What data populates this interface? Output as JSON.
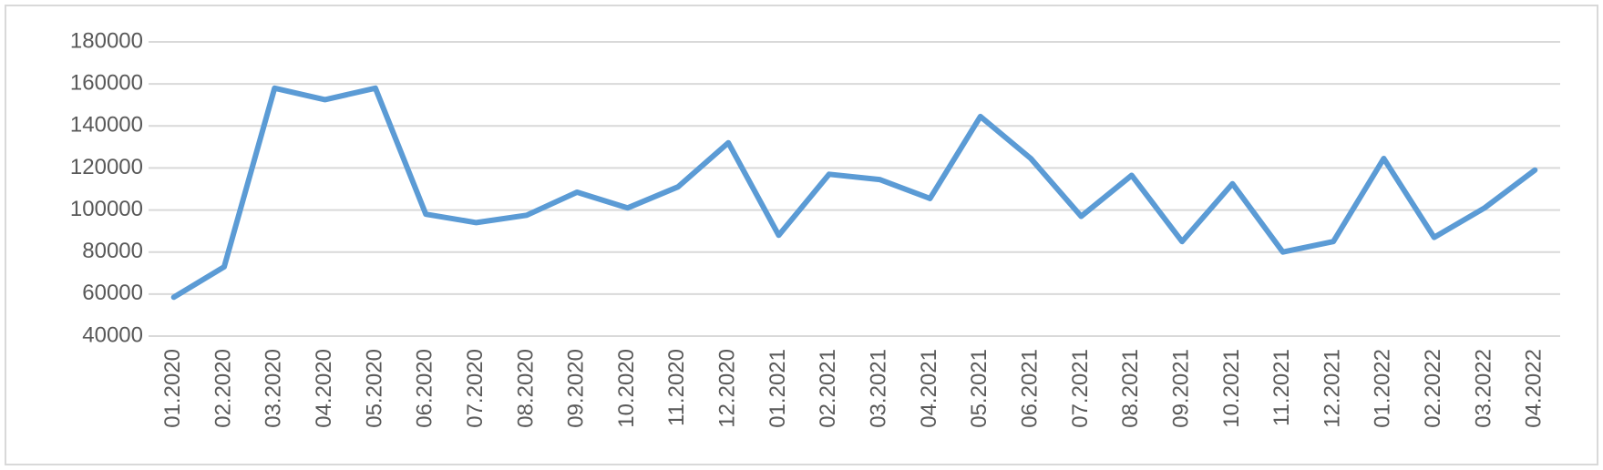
{
  "chart_data": {
    "type": "line",
    "categories": [
      "01.2020",
      "02.2020",
      "03.2020",
      "04.2020",
      "05.2020",
      "06.2020",
      "07.2020",
      "08.2020",
      "09.2020",
      "10.2020",
      "11.2020",
      "12.2020",
      "01.2021",
      "02.2021",
      "03.2021",
      "04.2021",
      "05.2021",
      "06.2021",
      "07.2021",
      "08.2021",
      "09.2021",
      "10.2021",
      "11.2021",
      "12.2021",
      "01.2022",
      "02.2022",
      "03.2022",
      "04.2022"
    ],
    "values": [
      58500,
      73000,
      158000,
      152500,
      158000,
      98000,
      94000,
      97500,
      108500,
      101000,
      111000,
      132000,
      88000,
      117000,
      114500,
      105500,
      144500,
      124500,
      97000,
      116500,
      85000,
      112500,
      80000,
      85000,
      124500,
      87000,
      101000,
      119000
    ],
    "color": "#5b9bd5",
    "ylim": [
      40000,
      180000
    ],
    "yticks": [
      40000,
      60000,
      80000,
      100000,
      120000,
      140000,
      160000,
      180000
    ],
    "grid": true
  }
}
